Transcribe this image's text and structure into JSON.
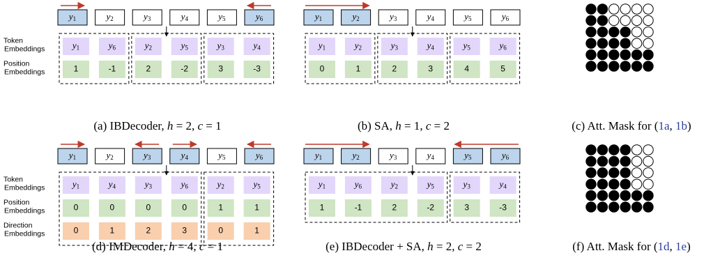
{
  "colors": {
    "blue": "#bcd4ec",
    "purple": "#e3d6fb",
    "green": "#cfe5c3",
    "orange": "#f9cfae",
    "arrow": "#c0392b",
    "ref": "#2c3fa0"
  },
  "row_labels": {
    "token": [
      "Token",
      "Embeddings"
    ],
    "position": [
      "Position",
      "Embeddings"
    ],
    "direction": [
      "Direction",
      "Embeddings"
    ]
  },
  "panels": [
    {
      "id": "a",
      "sequence": [
        "y1",
        "y2",
        "y3",
        "y4",
        "y5",
        "y6"
      ],
      "highlight": [
        0,
        5
      ],
      "arrows": [
        {
          "cell": 0,
          "dir": "right"
        },
        {
          "cell": 5,
          "dir": "left"
        }
      ],
      "groups": [
        {
          "tokens": [
            "y1",
            "y6"
          ],
          "positions": [
            "1",
            "-1"
          ]
        },
        {
          "tokens": [
            "y2",
            "y5"
          ],
          "positions": [
            "2",
            "-2"
          ]
        },
        {
          "tokens": [
            "y3",
            "y4"
          ],
          "positions": [
            "3",
            "-3"
          ]
        }
      ],
      "caption": {
        "prefix": "(a) IBDecoder, ",
        "math": [
          [
            "h",
            "= 2, "
          ],
          [
            "c",
            "= 1"
          ]
        ]
      }
    },
    {
      "id": "b",
      "sequence": [
        "y1",
        "y2",
        "y3",
        "y4",
        "y5",
        "y6"
      ],
      "highlight": [
        0,
        1
      ],
      "arrows": [
        {
          "span": [
            0,
            1
          ],
          "dir": "right"
        }
      ],
      "groups": [
        {
          "tokens": [
            "y1",
            "y2"
          ],
          "positions": [
            "0",
            "1"
          ]
        },
        {
          "tokens": [
            "y3",
            "y4"
          ],
          "positions": [
            "2",
            "3"
          ]
        },
        {
          "tokens": [
            "y5",
            "y6"
          ],
          "positions": [
            "4",
            "5"
          ]
        }
      ],
      "caption": {
        "prefix": "(b) SA, ",
        "math": [
          [
            "h",
            "= 1, "
          ],
          [
            "c",
            "= 2"
          ]
        ]
      }
    },
    {
      "id": "d",
      "sequence": [
        "y1",
        "y2",
        "y3",
        "y4",
        "y5",
        "y6"
      ],
      "highlight": [
        0,
        2,
        3,
        5
      ],
      "arrows": [
        {
          "cell": 0,
          "dir": "right"
        },
        {
          "cell": 2,
          "dir": "left"
        },
        {
          "cell": 3,
          "dir": "right"
        },
        {
          "cell": 5,
          "dir": "left"
        }
      ],
      "groups": [
        {
          "tokens": [
            "y1",
            "y4",
            "y3",
            "y6"
          ],
          "positions": [
            "0",
            "0",
            "0",
            "0"
          ],
          "directions": [
            "0",
            "1",
            "2",
            "3"
          ]
        },
        {
          "tokens": [
            "y2",
            "y5"
          ],
          "positions": [
            "1",
            "1"
          ],
          "directions": [
            "0",
            "1"
          ]
        }
      ],
      "caption": {
        "prefix": "(d) IMDecoder, ",
        "math": [
          [
            "h",
            "= 4, "
          ],
          [
            "c",
            "= 1"
          ]
        ]
      }
    },
    {
      "id": "e",
      "sequence": [
        "y1",
        "y2",
        "y3",
        "y4",
        "y5",
        "y6"
      ],
      "highlight": [
        0,
        1,
        4,
        5
      ],
      "arrows": [
        {
          "span": [
            0,
            1
          ],
          "dir": "right"
        },
        {
          "span": [
            4,
            5
          ],
          "dir": "left"
        }
      ],
      "groups": [
        {
          "tokens": [
            "y1",
            "y6",
            "y2",
            "y5"
          ],
          "positions": [
            "1",
            "-1",
            "2",
            "-2"
          ]
        },
        {
          "tokens": [
            "y3",
            "y4"
          ],
          "positions": [
            "3",
            "-3"
          ]
        }
      ],
      "caption": {
        "prefix": "(e) IBDecoder + SA, ",
        "math": [
          [
            "h",
            "= 2, "
          ],
          [
            "c",
            "= 2"
          ]
        ]
      }
    }
  ],
  "masks": [
    {
      "id": "c",
      "filled_per_row": [
        2,
        2,
        4,
        4,
        6,
        6
      ],
      "caption": {
        "prefix": "(c)  Att. Mask for (",
        "refs": [
          "1a",
          "1b"
        ],
        "suffix": ")"
      }
    },
    {
      "id": "f",
      "filled_per_row": [
        4,
        4,
        4,
        4,
        6,
        6
      ],
      "caption": {
        "prefix": "(f)  Att. Mask for (",
        "refs": [
          "1d",
          "1e"
        ],
        "suffix": ")"
      }
    }
  ]
}
